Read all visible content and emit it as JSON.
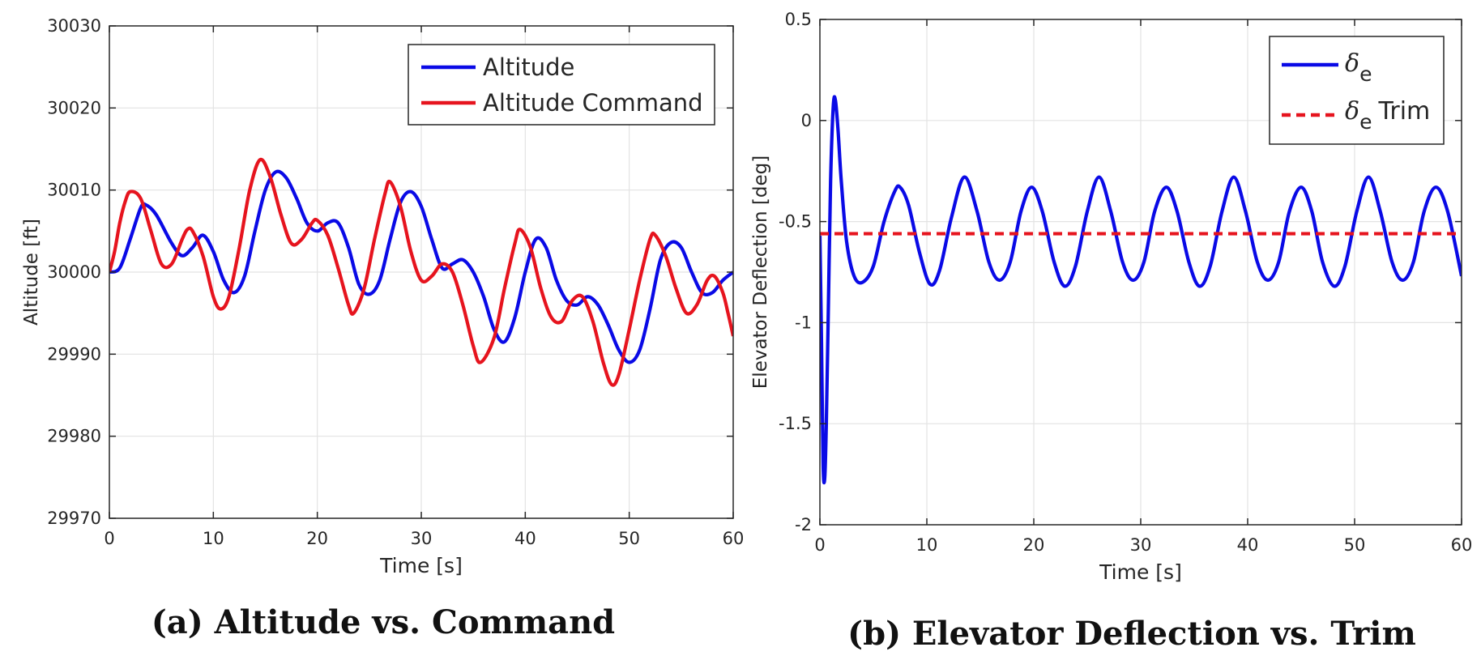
{
  "captions": {
    "a": "(a) Altitude vs. Command",
    "b": "(b) Elevator Deflection vs. Trim"
  },
  "colors": {
    "blue": "#0a0ae6",
    "red": "#e6141e",
    "grid": "#e3e3e3",
    "axis": "#262626"
  },
  "chart_data": [
    {
      "type": "line",
      "xlabel": "Time [s]",
      "ylabel": "Altitude [ft]",
      "xlim": [
        0,
        60
      ],
      "ylim": [
        29970,
        30030
      ],
      "xticks": [
        0,
        10,
        20,
        30,
        40,
        50,
        60
      ],
      "yticks": [
        29970,
        29980,
        29990,
        30000,
        30010,
        30020,
        30030
      ],
      "grid": true,
      "legend_position": "top-right",
      "series": [
        {
          "name": "Altitude",
          "color": "#0a0ae6",
          "style": "solid",
          "points": [
            [
              0,
              30000
            ],
            [
              1,
              30000.5
            ],
            [
              2,
              30004
            ],
            [
              3,
              30007.8
            ],
            [
              3.5,
              30008.2
            ],
            [
              4.5,
              30007
            ],
            [
              6,
              30003.5
            ],
            [
              7,
              30002
            ],
            [
              8,
              30003
            ],
            [
              9,
              30004.5
            ],
            [
              10,
              30002.5
            ],
            [
              11,
              29999
            ],
            [
              12,
              29997.5
            ],
            [
              13,
              29999.5
            ],
            [
              14,
              30005
            ],
            [
              15,
              30010
            ],
            [
              16,
              30012.2
            ],
            [
              17,
              30011.5
            ],
            [
              18,
              30009
            ],
            [
              19,
              30006
            ],
            [
              20,
              30005
            ],
            [
              21,
              30006
            ],
            [
              22,
              30006
            ],
            [
              23,
              30003
            ],
            [
              24,
              29998.5
            ],
            [
              25,
              29997.3
            ],
            [
              26,
              29999
            ],
            [
              27,
              30004
            ],
            [
              28,
              30008.5
            ],
            [
              29,
              30009.8
            ],
            [
              30,
              30008
            ],
            [
              31,
              30004
            ],
            [
              32,
              30000.5
            ],
            [
              33,
              30001
            ],
            [
              34,
              30001.5
            ],
            [
              35,
              30000
            ],
            [
              36,
              29997
            ],
            [
              37,
              29993
            ],
            [
              38,
              29991.5
            ],
            [
              39,
              29994.5
            ],
            [
              40,
              30000
            ],
            [
              41,
              30004
            ],
            [
              42,
              30003
            ],
            [
              43,
              29999
            ],
            [
              44,
              29996.5
            ],
            [
              45,
              29996
            ],
            [
              46,
              29997
            ],
            [
              47,
              29996
            ],
            [
              48,
              29993.5
            ],
            [
              49,
              29990.5
            ],
            [
              50,
              29989
            ],
            [
              51,
              29990.5
            ],
            [
              52,
              29995.5
            ],
            [
              53,
              30001.5
            ],
            [
              54,
              30003.6
            ],
            [
              55,
              30003
            ],
            [
              56,
              30000
            ],
            [
              57,
              29997.5
            ],
            [
              58,
              29997.5
            ],
            [
              59,
              29999
            ],
            [
              60,
              30000
            ]
          ]
        },
        {
          "name": "Altitude Command",
          "color": "#e6141e",
          "style": "solid",
          "points": [
            [
              0,
              30000
            ],
            [
              0.5,
              30002.5
            ],
            [
              1,
              30006
            ],
            [
              1.5,
              30008.5
            ],
            [
              2,
              30009.8
            ],
            [
              3,
              30009
            ],
            [
              4,
              30005
            ],
            [
              5,
              30001
            ],
            [
              6,
              30001
            ],
            [
              7,
              30004
            ],
            [
              7.5,
              30005.2
            ],
            [
              8,
              30005
            ],
            [
              9,
              30002
            ],
            [
              10,
              29997
            ],
            [
              10.7,
              29995.5
            ],
            [
              11.5,
              29997
            ],
            [
              12.5,
              30003
            ],
            [
              13.5,
              30010
            ],
            [
              14.5,
              30013.7
            ],
            [
              15.5,
              30011.5
            ],
            [
              16.5,
              30007
            ],
            [
              17.5,
              30003.5
            ],
            [
              18.5,
              30004
            ],
            [
              19.5,
              30006
            ],
            [
              20,
              30006.3
            ],
            [
              21,
              30004.5
            ],
            [
              22,
              30000.5
            ],
            [
              23,
              29996
            ],
            [
              23.5,
              29995
            ],
            [
              24.5,
              29998
            ],
            [
              25.5,
              30004
            ],
            [
              26.5,
              30009.5
            ],
            [
              27,
              30011
            ],
            [
              28,
              30008
            ],
            [
              29,
              30002.5
            ],
            [
              30,
              29999
            ],
            [
              31,
              29999.5
            ],
            [
              32,
              30001
            ],
            [
              33,
              30000
            ],
            [
              34,
              29996
            ],
            [
              35,
              29991
            ],
            [
              35.7,
              29989
            ],
            [
              37,
              29992
            ],
            [
              38,
              29998
            ],
            [
              39,
              30003.5
            ],
            [
              39.5,
              30005.2
            ],
            [
              40.5,
              30003
            ],
            [
              41.5,
              29998
            ],
            [
              42.5,
              29994.5
            ],
            [
              43.5,
              29994
            ],
            [
              44.5,
              29996.5
            ],
            [
              45.5,
              29997
            ],
            [
              46.5,
              29994
            ],
            [
              47.5,
              29989
            ],
            [
              48.3,
              29986.3
            ],
            [
              49,
              29987.5
            ],
            [
              50,
              29993
            ],
            [
              51,
              29999
            ],
            [
              52,
              30004
            ],
            [
              52.5,
              30004.5
            ],
            [
              53.5,
              30002
            ],
            [
              54.5,
              29998
            ],
            [
              55.5,
              29995
            ],
            [
              56.5,
              29996
            ],
            [
              57.5,
              29999
            ],
            [
              58.2,
              29999.5
            ],
            [
              59,
              29997.5
            ],
            [
              59.5,
              29995
            ],
            [
              60,
              29992.2
            ]
          ]
        }
      ]
    },
    {
      "type": "line",
      "xlabel": "Time [s]",
      "ylabel": "Elevator Deflection [deg]",
      "xlim": [
        0,
        60
      ],
      "ylim": [
        -2,
        0.5
      ],
      "xticks": [
        0,
        10,
        20,
        30,
        40,
        50,
        60
      ],
      "yticks": [
        -2,
        -1.5,
        -1,
        -0.5,
        0,
        0.5
      ],
      "grid": true,
      "legend_position": "top-right",
      "series": [
        {
          "name": "δe",
          "color": "#0a0ae6",
          "style": "solid",
          "points": [
            [
              0,
              -0.57
            ],
            [
              0.15,
              -1.1
            ],
            [
              0.3,
              -1.7
            ],
            [
              0.45,
              -1.77
            ],
            [
              0.6,
              -1.5
            ],
            [
              0.8,
              -0.9
            ],
            [
              1,
              -0.3
            ],
            [
              1.25,
              0.07
            ],
            [
              1.45,
              0.1
            ],
            [
              1.7,
              -0.05
            ],
            [
              2,
              -0.3
            ],
            [
              2.5,
              -0.6
            ],
            [
              3.2,
              -0.77
            ],
            [
              4,
              -0.8
            ],
            [
              5,
              -0.72
            ],
            [
              6,
              -0.5
            ],
            [
              7,
              -0.35
            ],
            [
              7.5,
              -0.33
            ],
            [
              8.3,
              -0.42
            ],
            [
              9.3,
              -0.65
            ],
            [
              10.3,
              -0.81
            ],
            [
              11.2,
              -0.74
            ],
            [
              12.3,
              -0.48
            ],
            [
              13.5,
              -0.28
            ],
            [
              14.7,
              -0.45
            ],
            [
              15.8,
              -0.7
            ],
            [
              16.8,
              -0.79
            ],
            [
              17.8,
              -0.7
            ],
            [
              18.8,
              -0.45
            ],
            [
              19.8,
              -0.33
            ],
            [
              20.8,
              -0.45
            ],
            [
              21.9,
              -0.7
            ],
            [
              22.9,
              -0.82
            ],
            [
              23.9,
              -0.72
            ],
            [
              25,
              -0.45
            ],
            [
              26.1,
              -0.28
            ],
            [
              27.2,
              -0.45
            ],
            [
              28.3,
              -0.7
            ],
            [
              29.3,
              -0.79
            ],
            [
              30.3,
              -0.7
            ],
            [
              31.3,
              -0.45
            ],
            [
              32.4,
              -0.33
            ],
            [
              33.4,
              -0.45
            ],
            [
              34.5,
              -0.7
            ],
            [
              35.5,
              -0.82
            ],
            [
              36.5,
              -0.72
            ],
            [
              37.6,
              -0.45
            ],
            [
              38.7,
              -0.28
            ],
            [
              39.8,
              -0.45
            ],
            [
              40.9,
              -0.7
            ],
            [
              41.9,
              -0.79
            ],
            [
              42.9,
              -0.7
            ],
            [
              43.9,
              -0.45
            ],
            [
              45,
              -0.33
            ],
            [
              46,
              -0.45
            ],
            [
              47,
              -0.7
            ],
            [
              48.1,
              -0.82
            ],
            [
              49.1,
              -0.72
            ],
            [
              50.2,
              -0.45
            ],
            [
              51.3,
              -0.28
            ],
            [
              52.4,
              -0.45
            ],
            [
              53.5,
              -0.7
            ],
            [
              54.5,
              -0.79
            ],
            [
              55.5,
              -0.7
            ],
            [
              56.5,
              -0.45
            ],
            [
              57.6,
              -0.33
            ],
            [
              58.7,
              -0.45
            ],
            [
              60,
              -0.77
            ]
          ]
        },
        {
          "name": "δe Trim",
          "color": "#e6141e",
          "style": "dashed",
          "points": [
            [
              0,
              -0.56
            ],
            [
              60,
              -0.56
            ]
          ]
        }
      ]
    }
  ]
}
